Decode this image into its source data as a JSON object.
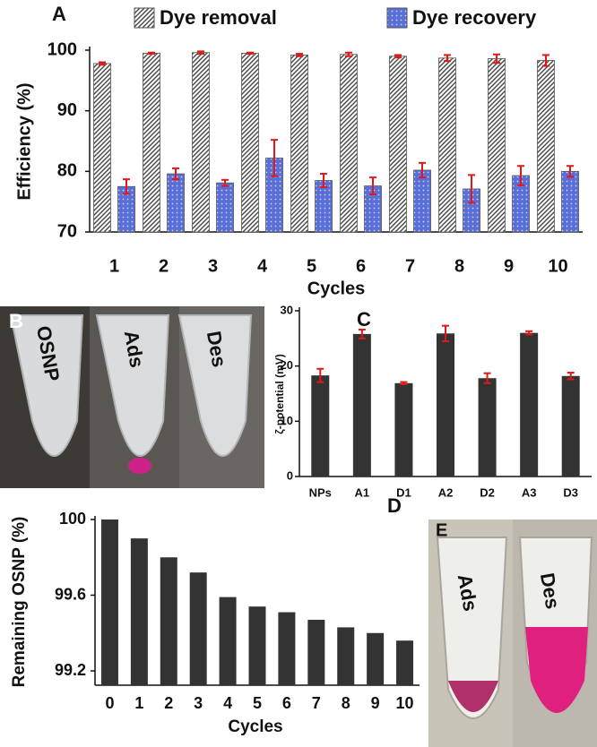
{
  "chart_data": [
    {
      "type": "bar",
      "label": "A",
      "ylabel": "Efficiency (%)",
      "xlabel": "Cycles",
      "categories": [
        "1",
        "2",
        "3",
        "4",
        "5",
        "6",
        "7",
        "8",
        "9",
        "10"
      ],
      "series": [
        {
          "name": "Dye removal",
          "color": "#444444",
          "pattern": "hatch",
          "values": [
            97.8,
            99.5,
            99.6,
            99.5,
            99.2,
            99.3,
            99.0,
            98.7,
            98.6,
            98.3
          ],
          "errors": [
            0.2,
            0.1,
            0.2,
            0.1,
            0.2,
            0.3,
            0.2,
            0.5,
            0.7,
            0.9
          ]
        },
        {
          "name": "Dye recovery",
          "color": "#5a6fd6",
          "pattern": "dots",
          "values": [
            77.5,
            79.6,
            78.1,
            82.2,
            78.5,
            77.6,
            80.2,
            77.1,
            79.3,
            80.0
          ],
          "errors": [
            1.2,
            0.9,
            0.5,
            3.0,
            1.1,
            1.4,
            1.2,
            2.3,
            1.6,
            0.9
          ]
        }
      ],
      "ylim": [
        70,
        100
      ],
      "yticks": [
        70,
        80,
        90,
        100
      ],
      "error_color": "#e01818"
    },
    {
      "type": "bar",
      "label": "C",
      "ylabel": "ζ-potential (mV)",
      "categories": [
        "NPs",
        "A1",
        "D1",
        "A2",
        "D2",
        "A3",
        "D3"
      ],
      "values": [
        18.3,
        25.8,
        16.9,
        25.9,
        17.8,
        26.0,
        18.2
      ],
      "errors": [
        1.2,
        0.8,
        0.2,
        1.4,
        0.9,
        0.3,
        0.6
      ],
      "color": "#333333",
      "ylim": [
        0,
        30
      ],
      "yticks": [
        0,
        10,
        20,
        30
      ],
      "error_color": "#e01818"
    },
    {
      "type": "bar",
      "label": "D",
      "ylabel": "Remaining OSNP (%)",
      "xlabel": "Cycles",
      "categories": [
        "0",
        "1",
        "2",
        "3",
        "4",
        "5",
        "6",
        "7",
        "8",
        "9",
        "10"
      ],
      "values": [
        100,
        99.9,
        99.8,
        99.72,
        99.59,
        99.54,
        99.51,
        99.47,
        99.43,
        99.4,
        99.36
      ],
      "color": "#333333",
      "ylim": [
        99.2,
        100
      ],
      "yticks": [
        99.2,
        99.6,
        100
      ]
    }
  ],
  "panel_b": {
    "label": "B",
    "tubes": [
      "OSNP",
      "Ads",
      "Des"
    ]
  },
  "panel_e": {
    "label": "E",
    "tubes": [
      "Ads",
      "Des"
    ]
  }
}
